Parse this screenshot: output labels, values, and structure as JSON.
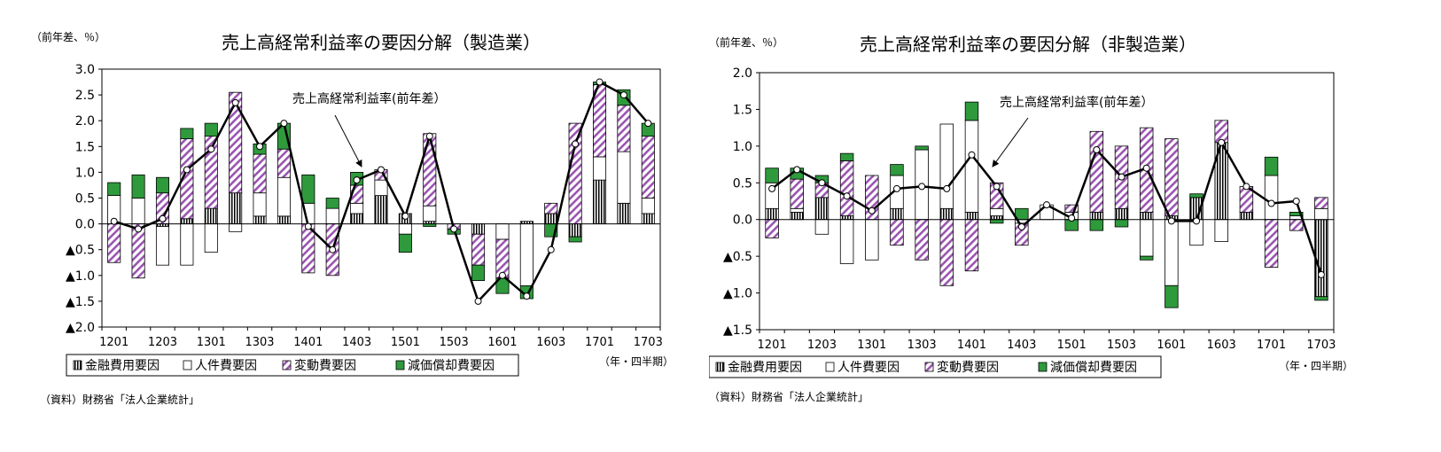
{
  "charts": [
    {
      "title": "売上高経常利益率の要因分解（製造業）",
      "unit": "（前年差、％）",
      "xunit": "（年・四半期）",
      "source": "（資料）財務省「法人企業統計」",
      "annotation": "売上高経常利益率(前年差）"
    },
    {
      "title": "売上高経常利益率の要因分解（非製造業）",
      "unit": "（前年差、％）",
      "xunit": "（年・四半期）",
      "source": "（資料）財務省「法人企業統計」",
      "annotation": "売上高経常利益率(前年差）"
    }
  ],
  "colors": {
    "finance": "#ffffff",
    "labor": "#ffffff",
    "variable": "#9a55b0",
    "depreciation": "#2e9a3c",
    "line": "#000000"
  },
  "chart_data": [
    {
      "type": "bar",
      "stacked": true,
      "title": "売上高経常利益率の要因分解（製造業）",
      "ylabel": "（前年差、％）",
      "xlabel": "（年・四半期）",
      "ylim": [
        -2.0,
        3.0
      ],
      "yticks": [
        3.0,
        2.5,
        2.0,
        1.5,
        1.0,
        0.5,
        0.0,
        -0.5,
        -1.0,
        -1.5,
        -2.0
      ],
      "ytick_labels": [
        "3.0",
        "2.5",
        "2.0",
        "1.5",
        "1.0",
        "0.5",
        "0.0",
        "▲0.5",
        "▲1.0",
        "▲1.5",
        "▲2.0"
      ],
      "categories": [
        "1201",
        "1202",
        "1203",
        "1204",
        "1301",
        "1302",
        "1303",
        "1304",
        "1401",
        "1402",
        "1403",
        "1404",
        "1501",
        "1502",
        "1503",
        "1504",
        "1601",
        "1602",
        "1603",
        "1604",
        "1701",
        "1702",
        "1703"
      ],
      "xtick_labels": [
        "1201",
        "1203",
        "1301",
        "1303",
        "1401",
        "1403",
        "1501",
        "1503",
        "1601",
        "1603",
        "1701",
        "1703"
      ],
      "legend_position": "bottom-left",
      "grid": false,
      "series": [
        {
          "name": "金融費用要因",
          "kind": "bar",
          "values": [
            0.0,
            0.0,
            -0.05,
            0.1,
            0.3,
            0.6,
            0.15,
            0.15,
            0.0,
            0.0,
            0.2,
            0.55,
            0.2,
            0.05,
            0.0,
            -0.2,
            0.0,
            0.05,
            0.2,
            -0.25,
            0.85,
            0.4,
            0.2
          ]
        },
        {
          "name": "人件費要因",
          "kind": "bar",
          "values": [
            0.55,
            0.5,
            -0.75,
            -0.8,
            -0.55,
            -0.15,
            0.45,
            0.75,
            0.4,
            0.3,
            0.2,
            0.3,
            -0.2,
            0.3,
            0.0,
            0.0,
            -0.3,
            -1.2,
            0.0,
            0.0,
            0.45,
            1.0,
            0.3
          ]
        },
        {
          "name": "変動費要因",
          "kind": "bar",
          "values": [
            -0.75,
            -1.05,
            0.6,
            1.55,
            1.4,
            1.95,
            0.75,
            0.55,
            -0.95,
            -1.0,
            0.35,
            0.2,
            0.0,
            1.4,
            -0.1,
            -0.6,
            -0.75,
            0.0,
            0.2,
            1.95,
            1.4,
            0.9,
            1.2
          ]
        },
        {
          "name": "減価償却費要因",
          "kind": "bar",
          "values": [
            0.25,
            0.45,
            0.3,
            0.2,
            0.25,
            0.0,
            0.2,
            0.5,
            0.55,
            0.2,
            0.25,
            0.0,
            -0.35,
            -0.05,
            -0.1,
            -0.3,
            -0.3,
            -0.25,
            -0.25,
            -0.1,
            0.05,
            0.3,
            0.25
          ]
        },
        {
          "name": "売上高経常利益率(前年差）",
          "kind": "line",
          "values": [
            0.05,
            -0.1,
            0.1,
            1.05,
            1.45,
            2.35,
            1.5,
            1.95,
            -0.05,
            -0.5,
            0.85,
            1.05,
            0.15,
            1.7,
            -0.1,
            -1.5,
            -1.0,
            -1.4,
            -0.5,
            1.55,
            2.75,
            2.5,
            1.95
          ]
        }
      ]
    },
    {
      "type": "bar",
      "stacked": true,
      "title": "売上高経常利益率の要因分解（非製造業）",
      "ylabel": "（前年差、％）",
      "xlabel": "（年・四半期）",
      "ylim": [
        -1.5,
        2.0
      ],
      "yticks": [
        2.0,
        1.5,
        1.0,
        0.5,
        0.0,
        -0.5,
        -1.0,
        -1.5
      ],
      "ytick_labels": [
        "2.0",
        "1.5",
        "1.0",
        "0.5",
        "0.0",
        "▲0.5",
        "▲1.0",
        "▲1.5"
      ],
      "categories": [
        "1201",
        "1202",
        "1203",
        "1204",
        "1301",
        "1302",
        "1303",
        "1304",
        "1401",
        "1402",
        "1403",
        "1404",
        "1501",
        "1502",
        "1503",
        "1504",
        "1601",
        "1602",
        "1603",
        "1604",
        "1701",
        "1702",
        "1703"
      ],
      "xtick_labels": [
        "1201",
        "1203",
        "1301",
        "1303",
        "1401",
        "1403",
        "1501",
        "1503",
        "1601",
        "1603",
        "1701",
        "1703"
      ],
      "legend_position": "bottom-left",
      "grid": false,
      "series": [
        {
          "name": "金融費用要因",
          "kind": "bar",
          "values": [
            0.15,
            0.1,
            0.3,
            0.05,
            0.0,
            0.15,
            0.0,
            0.15,
            0.1,
            0.05,
            0.0,
            0.0,
            0.0,
            0.1,
            0.15,
            0.1,
            0.05,
            0.3,
            1.05,
            0.1,
            0.0,
            0.0,
            -1.05
          ]
        },
        {
          "name": "人件費要因",
          "kind": "bar",
          "values": [
            0.35,
            0.05,
            -0.2,
            -0.6,
            -0.55,
            0.45,
            0.95,
            1.15,
            1.25,
            0.1,
            -0.05,
            0.2,
            0.1,
            0.0,
            0.0,
            -0.5,
            -0.9,
            -0.35,
            -0.3,
            0.0,
            0.6,
            0.05,
            0.15
          ]
        },
        {
          "name": "変動費要因",
          "kind": "bar",
          "values": [
            -0.25,
            0.4,
            0.2,
            0.75,
            0.6,
            -0.35,
            -0.55,
            -0.9,
            -0.7,
            0.35,
            -0.3,
            0.0,
            0.1,
            1.1,
            0.85,
            1.15,
            1.05,
            0.0,
            0.3,
            0.35,
            -0.65,
            -0.15,
            0.15
          ]
        },
        {
          "name": "減価償却費要因",
          "kind": "bar",
          "values": [
            0.2,
            0.15,
            0.1,
            0.1,
            0.0,
            0.15,
            0.05,
            0.0,
            0.25,
            -0.05,
            0.15,
            0.0,
            -0.15,
            -0.15,
            -0.1,
            -0.05,
            -0.3,
            0.05,
            0.0,
            0.0,
            0.25,
            0.05,
            -0.05
          ]
        },
        {
          "name": "売上高経常利益率(前年差）",
          "kind": "line",
          "values": [
            0.42,
            0.68,
            0.5,
            0.32,
            0.12,
            0.42,
            0.45,
            0.42,
            0.88,
            0.45,
            -0.1,
            0.2,
            0.02,
            0.95,
            0.58,
            0.7,
            -0.02,
            -0.02,
            1.05,
            0.45,
            0.22,
            0.25,
            -0.75
          ]
        }
      ]
    }
  ]
}
